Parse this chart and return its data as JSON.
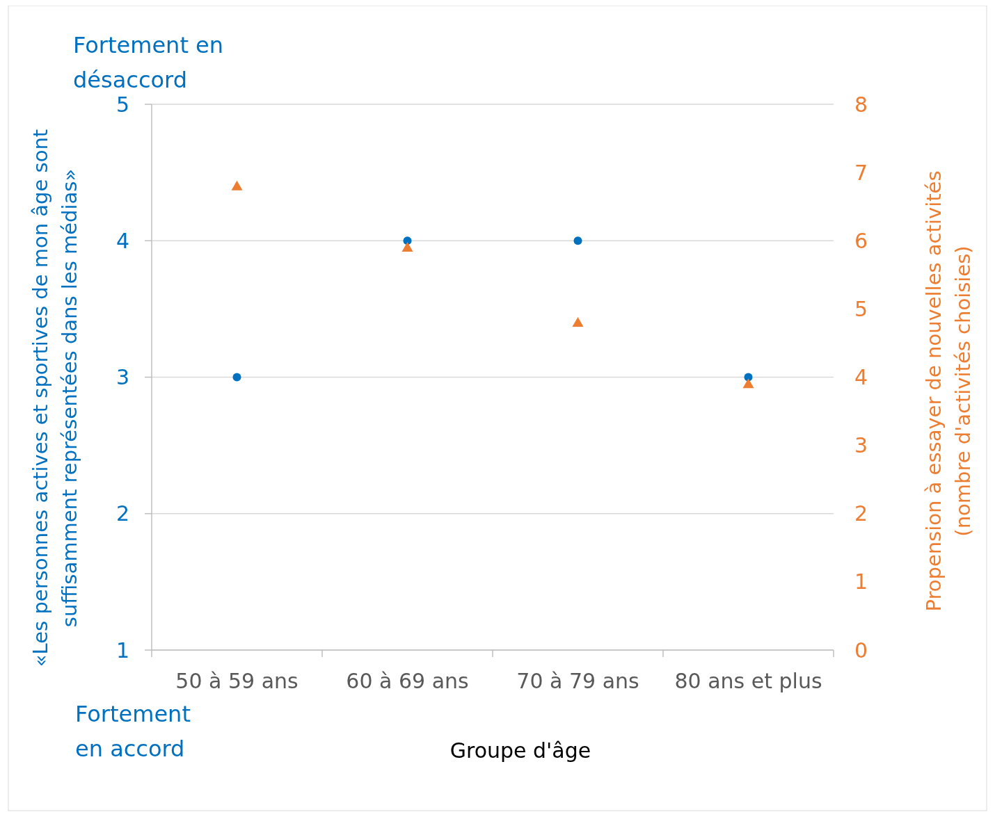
{
  "chart_data": {
    "type": "scatter",
    "xlabel": "Groupe d'âge",
    "ylabel": "«Les personnes actives et sportives de mon âge sont suffisamment représentées dans les médias»",
    "y2label": "Propension à essayer de nouvelles activités (nombre d'activités choisies)",
    "categories": [
      "50 à 59 ans",
      "60 à 69 ans",
      "70 à 79 ans",
      "80 ans et plus"
    ],
    "series": [
      {
        "color": "#0070c0",
        "marker": "circle",
        "values": [
          3,
          4,
          4,
          3
        ]
      },
      {
        "color": "#ed7d31",
        "marker": "triangle",
        "axis": "y2",
        "values": [
          6.8,
          5.9,
          4.8,
          3.9
        ]
      }
    ],
    "ylim": [
      1,
      5
    ],
    "yticks": [
      1,
      2,
      3,
      4,
      5
    ],
    "y2lim": [
      0,
      8
    ],
    "y2ticks": [
      0,
      1,
      2,
      3,
      4,
      5,
      6,
      7,
      8
    ],
    "grid": "y",
    "annotations": [
      "Fortement en désaccord",
      "Fortement en accord"
    ]
  }
}
